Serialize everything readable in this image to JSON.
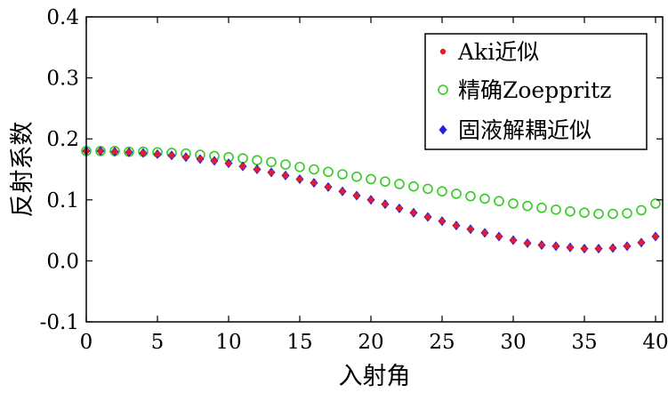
{
  "chart_data": {
    "type": "scatter",
    "xlabel": "入射角",
    "ylabel": "反射系数",
    "xlim": [
      0,
      40.5
    ],
    "ylim": [
      -0.1,
      0.4
    ],
    "xticks": [
      "0",
      "5",
      "10",
      "15",
      "20",
      "25",
      "30",
      "35",
      "40"
    ],
    "yticks": [
      "-0.1",
      "0.0",
      "0.1",
      "0.2",
      "0.3",
      "0.4"
    ],
    "grid": false,
    "legend_position": "top-right",
    "x": [
      0,
      1,
      2,
      3,
      4,
      5,
      6,
      7,
      8,
      9,
      10,
      11,
      12,
      13,
      14,
      15,
      16,
      17,
      18,
      19,
      20,
      21,
      22,
      23,
      24,
      25,
      26,
      27,
      28,
      29,
      30,
      31,
      32,
      33,
      34,
      35,
      36,
      37,
      38,
      39,
      40
    ],
    "series": [
      {
        "name": "Aki近似",
        "marker": "dot",
        "color": "#e8192c",
        "values": [
          0.18,
          0.18,
          0.179,
          0.178,
          0.177,
          0.175,
          0.173,
          0.17,
          0.167,
          0.164,
          0.16,
          0.155,
          0.15,
          0.145,
          0.14,
          0.134,
          0.128,
          0.121,
          0.114,
          0.107,
          0.1,
          0.093,
          0.086,
          0.079,
          0.072,
          0.065,
          0.058,
          0.052,
          0.046,
          0.04,
          0.034,
          0.029,
          0.026,
          0.024,
          0.022,
          0.02,
          0.02,
          0.021,
          0.024,
          0.03,
          0.04
        ]
      },
      {
        "name": "精确Zoeppritz",
        "marker": "hollow-circle",
        "color": "#33cc22",
        "values": [
          0.18,
          0.18,
          0.18,
          0.179,
          0.179,
          0.178,
          0.177,
          0.176,
          0.174,
          0.172,
          0.17,
          0.168,
          0.165,
          0.162,
          0.158,
          0.154,
          0.15,
          0.146,
          0.142,
          0.138,
          0.134,
          0.13,
          0.126,
          0.122,
          0.118,
          0.114,
          0.11,
          0.106,
          0.102,
          0.098,
          0.094,
          0.09,
          0.087,
          0.084,
          0.081,
          0.079,
          0.077,
          0.077,
          0.078,
          0.083,
          0.094
        ]
      },
      {
        "name": "固液解耦近似",
        "marker": "diamond",
        "color": "#2222dd",
        "values": [
          0.18,
          0.18,
          0.179,
          0.178,
          0.177,
          0.175,
          0.173,
          0.17,
          0.167,
          0.164,
          0.16,
          0.155,
          0.15,
          0.145,
          0.14,
          0.134,
          0.128,
          0.121,
          0.114,
          0.107,
          0.1,
          0.093,
          0.086,
          0.079,
          0.072,
          0.065,
          0.058,
          0.052,
          0.046,
          0.04,
          0.034,
          0.029,
          0.026,
          0.024,
          0.022,
          0.02,
          0.02,
          0.021,
          0.024,
          0.03,
          0.04
        ]
      }
    ]
  }
}
